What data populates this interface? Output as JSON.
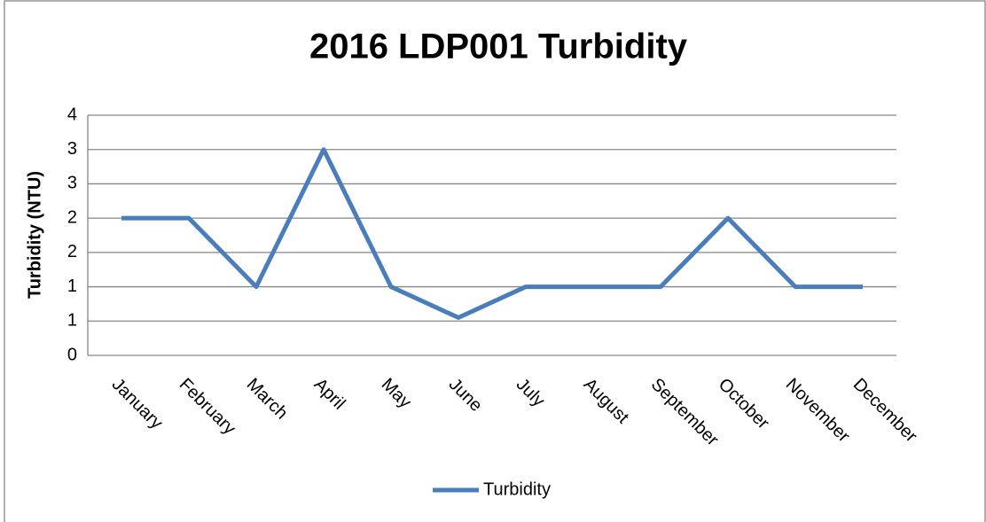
{
  "chart_data": {
    "type": "line",
    "title": "2016 LDP001 Turbidity",
    "y_label": "Turbidity (NTU)",
    "categories": [
      "January",
      "February",
      "March",
      "April",
      "May",
      "June",
      "July",
      "August",
      "September",
      "October",
      "November",
      "December"
    ],
    "series": [
      {
        "name": "Turbidity",
        "color": "#4a7ebb",
        "values": [
          2,
          2,
          1,
          3,
          1,
          0.55,
          1,
          1,
          1,
          2,
          1,
          1
        ]
      }
    ],
    "ylim": [
      0,
      3.5
    ],
    "yticks": [
      0,
      {
        "value": 0.5,
        "label": "1"
      },
      1,
      {
        "value": 1.5,
        "label": "2"
      },
      2,
      {
        "value": 2.5,
        "label": "3"
      },
      3,
      {
        "value": 3.5,
        "label": "4"
      }
    ],
    "grid": true,
    "legend": "bottom"
  }
}
